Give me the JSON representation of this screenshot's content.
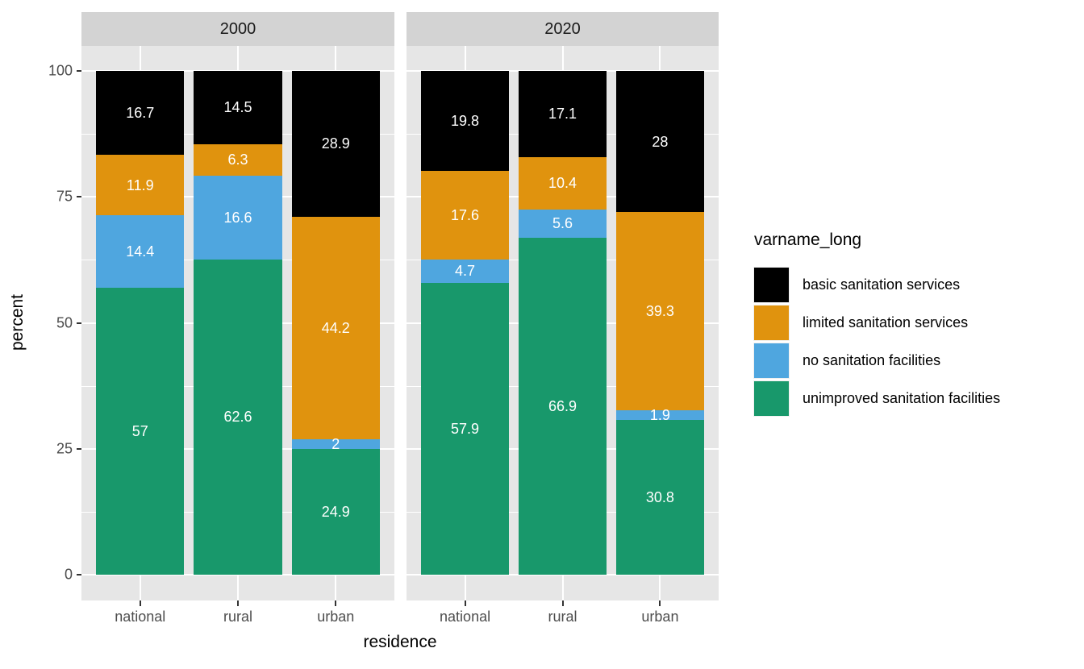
{
  "chart_data": {
    "type": "bar",
    "stacked": true,
    "orientation": "vertical",
    "title": "",
    "xlabel": "residence",
    "ylabel": "percent",
    "ylim": [
      0,
      100
    ],
    "yticks": [
      0,
      25,
      50,
      75,
      100
    ],
    "ytick_labels": [
      "0",
      "25",
      "50",
      "75",
      "100"
    ],
    "minor_yticks": [
      12.5,
      37.5,
      62.5,
      87.5
    ],
    "categories": [
      "national",
      "rural",
      "urban"
    ],
    "legend_title": "varname_long",
    "legend_position": "right",
    "grid": true,
    "series_stack_top_to_bottom": [
      "basic sanitation services",
      "limited sanitation services",
      "no sanitation facilities",
      "unimproved sanitation facilities"
    ],
    "series_colors": {
      "basic sanitation services": "#000000",
      "limited sanitation services": "#E0930E",
      "no sanitation facilities": "#4FA6DF",
      "unimproved sanitation facilities": "#18986B"
    },
    "facets": [
      {
        "label": "2000",
        "series": [
          {
            "name": "basic sanitation services",
            "values": [
              16.7,
              14.5,
              28.9
            ],
            "labels": [
              "16.7",
              "14.5",
              "28.9"
            ]
          },
          {
            "name": "limited sanitation services",
            "values": [
              11.9,
              6.3,
              44.2
            ],
            "labels": [
              "11.9",
              "6.3",
              "44.2"
            ]
          },
          {
            "name": "no sanitation facilities",
            "values": [
              14.4,
              16.6,
              2
            ],
            "labels": [
              "14.4",
              "16.6",
              "2"
            ]
          },
          {
            "name": "unimproved sanitation facilities",
            "values": [
              57,
              62.6,
              24.9
            ],
            "labels": [
              "57",
              "62.6",
              "24.9"
            ]
          }
        ]
      },
      {
        "label": "2020",
        "series": [
          {
            "name": "basic sanitation services",
            "values": [
              19.8,
              17.1,
              28
            ],
            "labels": [
              "19.8",
              "17.1",
              "28"
            ]
          },
          {
            "name": "limited sanitation services",
            "values": [
              17.6,
              10.4,
              39.3
            ],
            "labels": [
              "17.6",
              "10.4",
              "39.3"
            ]
          },
          {
            "name": "no sanitation facilities",
            "values": [
              4.7,
              5.6,
              1.9
            ],
            "labels": [
              "4.7",
              "5.6",
              "1.9"
            ]
          },
          {
            "name": "unimproved sanitation facilities",
            "values": [
              57.9,
              66.9,
              30.8
            ],
            "labels": [
              "57.9",
              "66.9",
              "30.8"
            ]
          }
        ]
      }
    ],
    "style_colors": {
      "panel_background": "#E6E6E6",
      "strip_background": "#D3D3D3",
      "gridline_color": "#FFFFFF",
      "tick_color": "#333333",
      "tick_text_color": "#4D4D4D",
      "bar_label_color": "#FFFFFF"
    }
  }
}
